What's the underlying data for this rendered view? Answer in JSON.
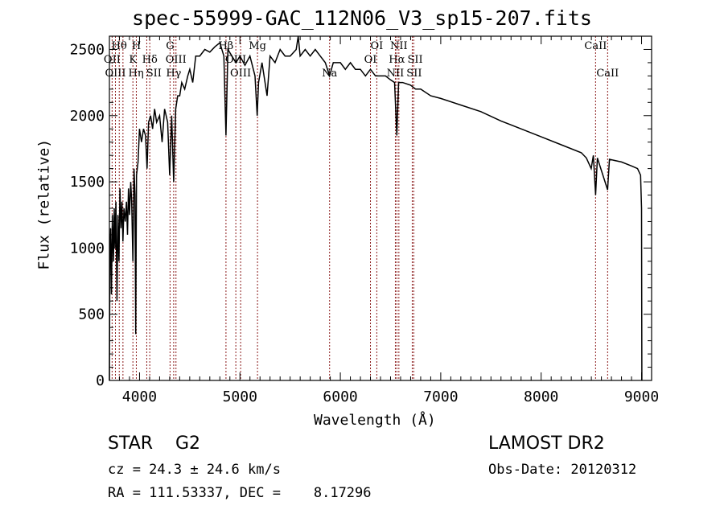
{
  "chart_data": {
    "type": "line",
    "title": "spec-55999-GAC_112N06_V3_sp15-207.fits",
    "xlabel": "Wavelength (Å)",
    "ylabel": "Flux (relative)",
    "xlim": [
      3700,
      9100
    ],
    "ylim": [
      0,
      2600
    ],
    "xticks": [
      4000,
      5000,
      6000,
      7000,
      8000,
      9000
    ],
    "yticks": [
      0,
      500,
      1000,
      1500,
      2000,
      2500
    ],
    "grid": false,
    "series": [
      {
        "name": "spectrum",
        "color": "#000000",
        "points": [
          [
            3700,
            0
          ],
          [
            3705,
            900
          ],
          [
            3712,
            1150
          ],
          [
            3720,
            650
          ],
          [
            3730,
            1250
          ],
          [
            3740,
            900
          ],
          [
            3748,
            1300
          ],
          [
            3756,
            1000
          ],
          [
            3765,
            1350
          ],
          [
            3775,
            600
          ],
          [
            3785,
            1250
          ],
          [
            3795,
            900
          ],
          [
            3805,
            1450
          ],
          [
            3815,
            1150
          ],
          [
            3825,
            1350
          ],
          [
            3835,
            1050
          ],
          [
            3845,
            1300
          ],
          [
            3858,
            1200
          ],
          [
            3870,
            1350
          ],
          [
            3880,
            1100
          ],
          [
            3890,
            1450
          ],
          [
            3900,
            1250
          ],
          [
            3912,
            1500
          ],
          [
            3922,
            1350
          ],
          [
            3934,
            900
          ],
          [
            3945,
            1600
          ],
          [
            3955,
            1400
          ],
          [
            3962,
            350
          ],
          [
            3970,
            1550
          ],
          [
            3985,
            1650
          ],
          [
            4000,
            1900
          ],
          [
            4020,
            1800
          ],
          [
            4040,
            1900
          ],
          [
            4060,
            1850
          ],
          [
            4075,
            1600
          ],
          [
            4090,
            1950
          ],
          [
            4110,
            2000
          ],
          [
            4130,
            1900
          ],
          [
            4150,
            2050
          ],
          [
            4170,
            1950
          ],
          [
            4200,
            2000
          ],
          [
            4225,
            1800
          ],
          [
            4250,
            2050
          ],
          [
            4280,
            1950
          ],
          [
            4300,
            1550
          ],
          [
            4320,
            2000
          ],
          [
            4340,
            1500
          ],
          [
            4360,
            2050
          ],
          [
            4380,
            2150
          ],
          [
            4400,
            2150
          ],
          [
            4420,
            2250
          ],
          [
            4450,
            2200
          ],
          [
            4480,
            2300
          ],
          [
            4500,
            2350
          ],
          [
            4530,
            2250
          ],
          [
            4560,
            2450
          ],
          [
            4600,
            2450
          ],
          [
            4650,
            2500
          ],
          [
            4700,
            2480
          ],
          [
            4750,
            2520
          ],
          [
            4800,
            2550
          ],
          [
            4840,
            2450
          ],
          [
            4861,
            1850
          ],
          [
            4880,
            2500
          ],
          [
            4920,
            2450
          ],
          [
            4960,
            2400
          ],
          [
            5000,
            2450
          ],
          [
            5050,
            2380
          ],
          [
            5100,
            2450
          ],
          [
            5150,
            2300
          ],
          [
            5172,
            2000
          ],
          [
            5185,
            2250
          ],
          [
            5220,
            2400
          ],
          [
            5270,
            2150
          ],
          [
            5300,
            2450
          ],
          [
            5350,
            2400
          ],
          [
            5400,
            2500
          ],
          [
            5450,
            2450
          ],
          [
            5500,
            2450
          ],
          [
            5560,
            2500
          ],
          [
            5580,
            2600
          ],
          [
            5600,
            2450
          ],
          [
            5650,
            2500
          ],
          [
            5700,
            2450
          ],
          [
            5750,
            2500
          ],
          [
            5800,
            2450
          ],
          [
            5850,
            2400
          ],
          [
            5893,
            2300
          ],
          [
            5930,
            2400
          ],
          [
            6000,
            2400
          ],
          [
            6050,
            2350
          ],
          [
            6100,
            2400
          ],
          [
            6150,
            2350
          ],
          [
            6200,
            2350
          ],
          [
            6250,
            2300
          ],
          [
            6300,
            2350
          ],
          [
            6350,
            2300
          ],
          [
            6400,
            2300
          ],
          [
            6450,
            2300
          ],
          [
            6500,
            2270
          ],
          [
            6540,
            2250
          ],
          [
            6563,
            1850
          ],
          [
            6580,
            2250
          ],
          [
            6620,
            2250
          ],
          [
            6700,
            2230
          ],
          [
            6750,
            2200
          ],
          [
            6800,
            2200
          ],
          [
            6900,
            2150
          ],
          [
            7000,
            2130
          ],
          [
            7200,
            2080
          ],
          [
            7400,
            2030
          ],
          [
            7600,
            1960
          ],
          [
            7800,
            1900
          ],
          [
            8000,
            1840
          ],
          [
            8200,
            1780
          ],
          [
            8400,
            1720
          ],
          [
            8450,
            1680
          ],
          [
            8498,
            1600
          ],
          [
            8520,
            1700
          ],
          [
            8542,
            1400
          ],
          [
            8560,
            1680
          ],
          [
            8662,
            1440
          ],
          [
            8680,
            1670
          ],
          [
            8800,
            1650
          ],
          [
            8900,
            1620
          ],
          [
            8960,
            1600
          ],
          [
            8990,
            1550
          ],
          [
            9000,
            1300
          ],
          [
            9003,
            0
          ]
        ]
      }
    ],
    "line_markers": [
      {
        "label": "Hθ",
        "wavelength": 3798,
        "row": 1
      },
      {
        "label": "OII",
        "wavelength": 3727,
        "row": 2
      },
      {
        "label": "OIII",
        "wavelength": 3760,
        "row": 3
      },
      {
        "label": "Hη",
        "wavelength": 3835,
        "row": 3
      },
      {
        "label": "H",
        "wavelength": 3968,
        "row": 1
      },
      {
        "label": "K",
        "wavelength": 3934,
        "row": 2
      },
      {
        "label": "Hδ",
        "wavelength": 4102,
        "row": 2
      },
      {
        "label": "SII",
        "wavelength": 4072,
        "row": 3
      },
      {
        "label": "G",
        "wavelength": 4304,
        "row": 1
      },
      {
        "label": "OIII",
        "wavelength": 4363,
        "row": 2
      },
      {
        "label": "Hγ",
        "wavelength": 4340,
        "row": 3
      },
      {
        "label": "Hβ",
        "wavelength": 4861,
        "row": 1
      },
      {
        "label": "OIII",
        "wavelength": 4959,
        "row": 2
      },
      {
        "label": "OIII",
        "wavelength": 5007,
        "row": 3
      },
      {
        "label": "Mg",
        "wavelength": 5175,
        "row": 1
      },
      {
        "label": "Na",
        "wavelength": 5893,
        "row": 3
      },
      {
        "label": "OI",
        "wavelength": 6363,
        "row": 1
      },
      {
        "label": "OI",
        "wavelength": 6300,
        "row": 2
      },
      {
        "label": "NII",
        "wavelength": 6583,
        "row": 1
      },
      {
        "label": "Hα",
        "wavelength": 6563,
        "row": 2
      },
      {
        "label": "NII",
        "wavelength": 6548,
        "row": 3
      },
      {
        "label": "SII",
        "wavelength": 6716,
        "row": 2
      },
      {
        "label": "SII",
        "wavelength": 6731,
        "row": 3
      },
      {
        "label": "CaII",
        "wavelength": 8542,
        "row": 1
      },
      {
        "label": "CaII",
        "wavelength": 8662,
        "row": 3
      }
    ],
    "marker_color": "#8b1a1a"
  },
  "info": {
    "class": "STAR    G2",
    "cz": "cz = 24.3 ± 24.6 km/s",
    "radec": "RA = 111.53337, DEC =    8.17296",
    "survey": "LAMOST DR2",
    "obsdate": "Obs-Date: 20120312"
  }
}
